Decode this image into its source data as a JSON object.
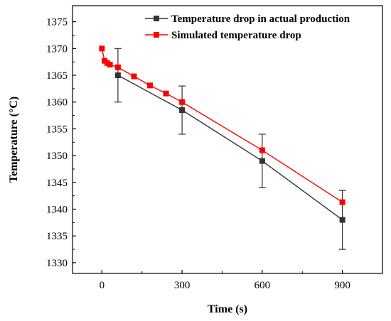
{
  "chart_data": {
    "type": "line",
    "xlabel": "Time (s)",
    "ylabel": "Temperature (°C)",
    "xlim": [
      -110,
      1050
    ],
    "ylim": [
      1328,
      1378
    ],
    "xticks": [
      0,
      300,
      600,
      900
    ],
    "yticks": [
      1330,
      1335,
      1340,
      1345,
      1350,
      1355,
      1360,
      1365,
      1370,
      1375
    ],
    "grid": false,
    "legend_position": "top-right",
    "series": [
      {
        "name": "Temperature drop in actual production",
        "color": "#333333",
        "marker": "square",
        "points": [
          {
            "x": 60,
            "y": 1365,
            "err": 5
          },
          {
            "x": 300,
            "y": 1358.5,
            "err": 4.5
          },
          {
            "x": 600,
            "y": 1349,
            "err": 5
          },
          {
            "x": 900,
            "y": 1338,
            "err": 5.5
          }
        ]
      },
      {
        "name": "Simulated temperature drop",
        "color": "#ff0000",
        "marker": "square",
        "points": [
          {
            "x": 0,
            "y": 1370
          },
          {
            "x": 10,
            "y": 1367.7
          },
          {
            "x": 20,
            "y": 1367.3
          },
          {
            "x": 30,
            "y": 1367
          },
          {
            "x": 60,
            "y": 1366.5
          },
          {
            "x": 120,
            "y": 1364.8
          },
          {
            "x": 180,
            "y": 1363.1
          },
          {
            "x": 240,
            "y": 1361.6
          },
          {
            "x": 300,
            "y": 1360
          },
          {
            "x": 600,
            "y": 1351
          },
          {
            "x": 900,
            "y": 1341.3
          }
        ]
      }
    ]
  }
}
